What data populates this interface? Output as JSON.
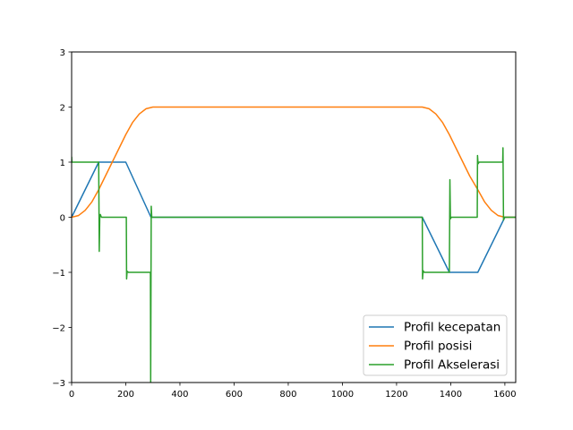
{
  "chart_data": {
    "type": "line",
    "title": "",
    "xlabel": "",
    "ylabel": "",
    "xlim": [
      0,
      1640
    ],
    "ylim": [
      -3,
      3
    ],
    "xticks": [
      0,
      200,
      400,
      600,
      800,
      1000,
      1200,
      1400,
      1600
    ],
    "xtick_labels": [
      "0",
      "200",
      "400",
      "600",
      "800",
      "1000",
      "1200",
      "1400",
      "1600"
    ],
    "yticks": [
      -3,
      -2,
      -1,
      0,
      1,
      2,
      3
    ],
    "ytick_labels": [
      "−3",
      "−2",
      "−1",
      "0",
      "1",
      "2",
      "3"
    ],
    "grid": false,
    "legend_position": "lower-right",
    "series": [
      {
        "name": "Profil kecepatan",
        "color": "#1f77b4",
        "points": [
          [
            0,
            0
          ],
          [
            100,
            1
          ],
          [
            200,
            1
          ],
          [
            293,
            0
          ],
          [
            1295,
            0
          ],
          [
            1395,
            -1
          ],
          [
            1500,
            -1
          ],
          [
            1600,
            0
          ],
          [
            1640,
            0
          ]
        ]
      },
      {
        "name": "Profil posisi",
        "color": "#ff7f0e",
        "points": [
          [
            0,
            0
          ],
          [
            25,
            0.03
          ],
          [
            50,
            0.125
          ],
          [
            75,
            0.28
          ],
          [
            100,
            0.5
          ],
          [
            125,
            0.75
          ],
          [
            150,
            1.0
          ],
          [
            175,
            1.25
          ],
          [
            200,
            1.5
          ],
          [
            225,
            1.72
          ],
          [
            250,
            1.875
          ],
          [
            275,
            1.97
          ],
          [
            300,
            2.0
          ],
          [
            1295,
            2.0
          ],
          [
            1320,
            1.97
          ],
          [
            1345,
            1.875
          ],
          [
            1370,
            1.72
          ],
          [
            1395,
            1.5
          ],
          [
            1420,
            1.25
          ],
          [
            1445,
            1.0
          ],
          [
            1470,
            0.75
          ],
          [
            1500,
            0.5
          ],
          [
            1525,
            0.28
          ],
          [
            1550,
            0.125
          ],
          [
            1575,
            0.03
          ],
          [
            1600,
            0
          ],
          [
            1640,
            0
          ]
        ]
      },
      {
        "name": "Profil Akselerasi",
        "color": "#2ca02c",
        "points": [
          [
            0,
            1.1
          ],
          [
            1,
            1.0
          ],
          [
            100,
            1.0
          ],
          [
            102,
            -0.62
          ],
          [
            104,
            0.02
          ],
          [
            106,
            0.05
          ],
          [
            110,
            0.0
          ],
          [
            202,
            0.0
          ],
          [
            203,
            -1.12
          ],
          [
            205,
            -0.98
          ],
          [
            210,
            -1.0
          ],
          [
            291,
            -1.0
          ],
          [
            292,
            -3.0
          ],
          [
            294,
            0.2
          ],
          [
            296,
            0.0
          ],
          [
            1295,
            0.0
          ],
          [
            1296,
            -1.12
          ],
          [
            1298,
            -0.97
          ],
          [
            1302,
            -1.0
          ],
          [
            1395,
            -1.0
          ],
          [
            1397,
            0.68
          ],
          [
            1399,
            -0.03
          ],
          [
            1402,
            0.0
          ],
          [
            1498,
            0.0
          ],
          [
            1499,
            1.12
          ],
          [
            1501,
            0.97
          ],
          [
            1505,
            1.0
          ],
          [
            1592,
            1.0
          ],
          [
            1593,
            1.26
          ],
          [
            1595,
            -0.05
          ],
          [
            1598,
            0.0
          ],
          [
            1640,
            0.0
          ]
        ]
      }
    ]
  }
}
